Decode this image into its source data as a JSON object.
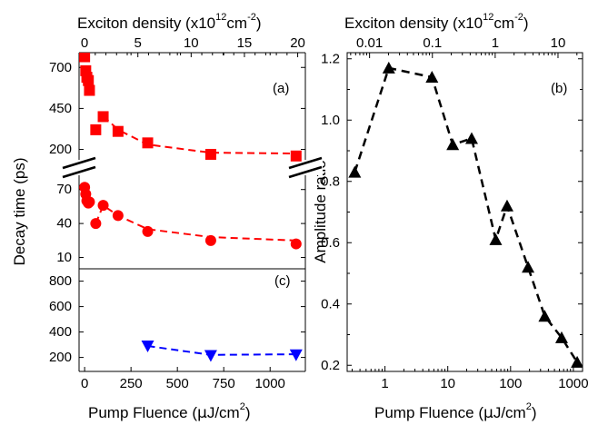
{
  "chart_data": [
    {
      "panel": "a",
      "type": "scatter",
      "panel_label": "(a)",
      "top_axis": {
        "label": "Exciton density (x10^12 cm^-2)",
        "ticks": [
          0,
          5,
          10,
          15,
          20
        ],
        "range": [
          -0.52,
          20.72
        ]
      },
      "xlabel": "Pump Fluence (µJ/cm^2)",
      "xlim": [
        -30,
        1190
      ],
      "ylabel": "Decay time (ps)",
      "upper": {
        "ylim": [
          120,
          790
        ],
        "yticks": [
          200,
          450,
          700
        ],
        "color": "#ff0000",
        "marker": "square",
        "x": [
          0,
          6,
          12,
          20,
          26,
          60,
          100,
          180,
          340,
          680,
          1140
        ],
        "y": [
          765,
          680,
          640,
          620,
          560,
          320,
          400,
          310,
          240,
          170,
          160
        ],
        "fit_x": [
          100,
          180,
          340,
          680,
          1140
        ],
        "fit_y": [
          405,
          320,
          230,
          180,
          175
        ]
      },
      "lower": {
        "ylim": [
          0,
          85
        ],
        "yticks": [
          10,
          40,
          70
        ],
        "color": "#ff0000",
        "marker": "circle",
        "x": [
          0,
          6,
          12,
          20,
          26,
          60,
          100,
          180,
          340,
          680,
          1140
        ],
        "y": [
          72,
          66,
          60,
          58,
          59,
          40,
          56,
          47,
          33,
          25,
          22
        ],
        "fit_x": [
          60,
          100,
          180,
          340,
          680,
          1140
        ],
        "fit_y": [
          40,
          56,
          47,
          35,
          28,
          25
        ]
      }
    },
    {
      "panel": "c",
      "type": "scatter",
      "panel_label": "(c)",
      "xlim": [
        -30,
        1190
      ],
      "xticks": [
        0,
        250,
        500,
        750,
        1000
      ],
      "xlabel": "Pump Fluence (µJ/cm^2)",
      "ylim": [
        90,
        890
      ],
      "yticks": [
        200,
        400,
        600,
        800
      ],
      "color": "#0000ff",
      "marker": "triangle-down",
      "x": [
        340,
        680,
        1140
      ],
      "y": [
        290,
        215,
        220
      ],
      "fit_x": [
        340,
        680,
        1140
      ],
      "fit_y": [
        290,
        220,
        225
      ]
    },
    {
      "panel": "b",
      "type": "line",
      "panel_label": "(b)",
      "x_scale": "log",
      "xlim": [
        0.25,
        1400
      ],
      "xticks": [
        1,
        10,
        100,
        1000
      ],
      "xlabel": "Pump Fluence (µJ/cm^2)",
      "top_axis": {
        "label": "Exciton density (x10^12 cm^-2)",
        "scale": "log",
        "ticks": [
          0.01,
          0.1,
          1,
          10
        ],
        "range": [
          0.0044,
          24.6
        ]
      },
      "ylim": [
        0.18,
        1.22
      ],
      "yticks": [
        0.2,
        0.4,
        0.6,
        0.8,
        1.0,
        1.2
      ],
      "ylabel": "Amplitude ratio",
      "color": "#000000",
      "marker": "triangle-up",
      "x": [
        0.33,
        1.15,
        5.6,
        12,
        24,
        58,
        88,
        190,
        350,
        650,
        1150
      ],
      "y": [
        0.83,
        1.17,
        1.14,
        0.92,
        0.94,
        0.61,
        0.72,
        0.52,
        0.36,
        0.29,
        0.21
      ]
    }
  ]
}
